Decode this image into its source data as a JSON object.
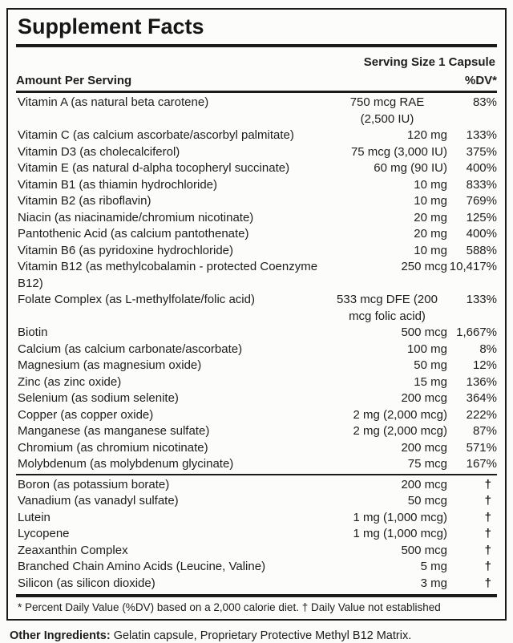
{
  "panel": {
    "title": "Supplement Facts",
    "serving_size": "Serving Size 1 Capsule",
    "columns": {
      "amount_header": "Amount Per Serving",
      "dv_header": "%DV*"
    },
    "sections": [
      {
        "rows": [
          {
            "name": "Vitamin A (as natural beta carotene)",
            "amount": "750 mcg RAE\n(2,500 IU)",
            "dv": "83%"
          },
          {
            "name": "Vitamin C (as calcium ascorbate/ascorbyl palmitate)",
            "amount": "120 mg",
            "dv": "133%"
          },
          {
            "name": "Vitamin D3 (as cholecalciferol)",
            "amount": "75 mcg (3,000 IU)",
            "dv": "375%"
          },
          {
            "name": "Vitamin E (as natural d-alpha tocopheryl succinate)",
            "amount": "60 mg (90 IU)",
            "dv": "400%"
          },
          {
            "name": "Vitamin B1 (as thiamin hydrochloride)",
            "amount": "10 mg",
            "dv": "833%"
          },
          {
            "name": "Vitamin B2 (as riboflavin)",
            "amount": "10 mg",
            "dv": "769%"
          },
          {
            "name": "Niacin (as niacinamide/chromium nicotinate)",
            "amount": "20 mg",
            "dv": "125%"
          },
          {
            "name": "Pantothenic Acid (as calcium pantothenate)",
            "amount": "20 mg",
            "dv": "400%"
          },
          {
            "name": "Vitamin B6 (as pyridoxine hydrochloride)",
            "amount": "10 mg",
            "dv": "588%"
          },
          {
            "name": "Vitamin B12 (as methylcobalamin - protected Coenzyme B12)",
            "amount": "250 mcg",
            "dv": "10,417%"
          },
          {
            "name": "Folate Complex (as L-methylfolate/folic acid)",
            "amount": "533 mcg DFE (200\nmcg folic acid)",
            "dv": "133%"
          },
          {
            "name": "Biotin",
            "amount": "500 mcg",
            "dv": "1,667%"
          },
          {
            "name": "Calcium (as calcium carbonate/ascorbate)",
            "amount": "100 mg",
            "dv": "8%"
          },
          {
            "name": "Magnesium (as magnesium oxide)",
            "amount": "50 mg",
            "dv": "12%"
          },
          {
            "name": "Zinc (as zinc oxide)",
            "amount": "15 mg",
            "dv": "136%"
          },
          {
            "name": "Selenium (as sodium selenite)",
            "amount": "200 mcg",
            "dv": "364%"
          },
          {
            "name": "Copper (as copper oxide)",
            "amount": "2 mg (2,000 mcg)",
            "dv": "222%"
          },
          {
            "name": "Manganese (as manganese sulfate)",
            "amount": "2 mg (2,000 mcg)",
            "dv": "87%"
          },
          {
            "name": "Chromium (as chromium nicotinate)",
            "amount": "200 mcg",
            "dv": "571%"
          },
          {
            "name": "Molybdenum (as molybdenum glycinate)",
            "amount": "75 mcg",
            "dv": "167%"
          }
        ]
      },
      {
        "rows": [
          {
            "name": "Boron (as potassium borate)",
            "amount": "200 mcg",
            "dv": "†"
          },
          {
            "name": "Vanadium (as vanadyl sulfate)",
            "amount": "50 mcg",
            "dv": "†"
          },
          {
            "name": "Lutein",
            "amount": "1 mg (1,000 mcg)",
            "dv": "†"
          },
          {
            "name": "Lycopene",
            "amount": "1 mg (1,000 mcg)",
            "dv": "†"
          },
          {
            "name": "Zeaxanthin Complex",
            "amount": "500 mcg",
            "dv": "†"
          },
          {
            "name": "Branched Chain Amino Acids (Leucine, Valine)",
            "amount": "5 mg",
            "dv": "†"
          },
          {
            "name": "Silicon (as silicon dioxide)",
            "amount": "3 mg",
            "dv": "†"
          }
        ]
      }
    ],
    "footnote": "* Percent Daily Value (%DV) based on a 2,000 calorie diet. † Daily Value not established"
  },
  "other_ingredients": {
    "label": "Other Ingredients:",
    "text": " Gelatin capsule, Proprietary Protective Methyl B12 Matrix."
  }
}
